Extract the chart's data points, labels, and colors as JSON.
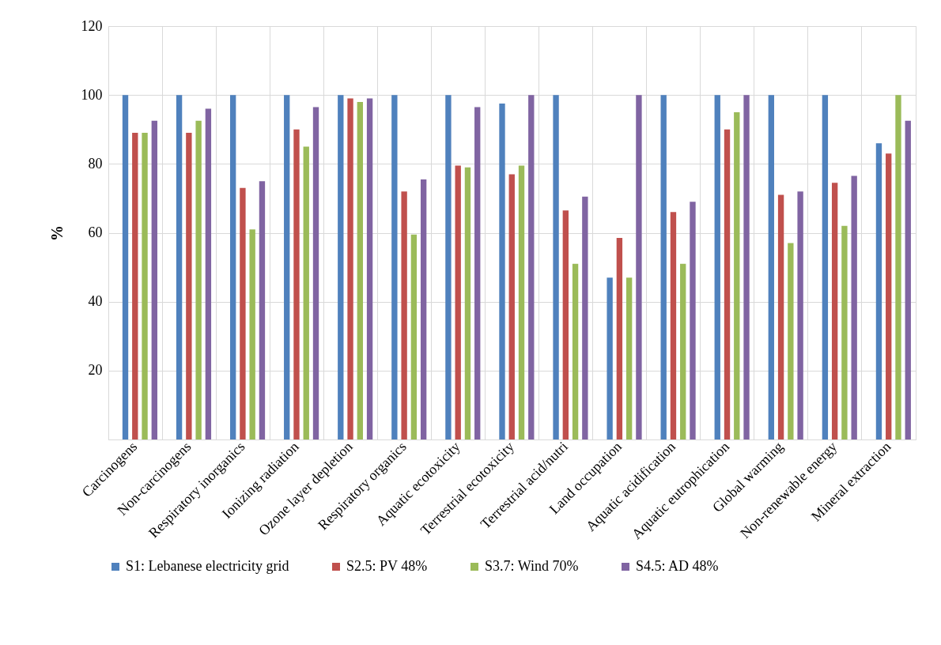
{
  "chart_data": {
    "type": "bar",
    "ylabel": "%",
    "categories": [
      "Carcinogens",
      "Non-carcinogens",
      "Respiratory inorganics",
      "Ionizing radiation",
      "Ozone layer depletion",
      "Respiratory organics",
      "Aquatic ecotoxicity",
      "Terrestrial ecotoxicity",
      "Terrestrial acid/nutri",
      "Land occupation",
      "Aquatic acidification",
      "Aquatic eutrophication",
      "Global warming",
      "Non-renewable energy",
      "Mineral extraction"
    ],
    "series": [
      {
        "name": "S1: Lebanese electricity grid",
        "color": "#4f81bd",
        "values": [
          100,
          100,
          100,
          100,
          100,
          100,
          100,
          97.5,
          100,
          47,
          100,
          100,
          100,
          100,
          86
        ]
      },
      {
        "name": "S2.5: PV 48%",
        "color": "#c0504d",
        "values": [
          89,
          89,
          73,
          90,
          99,
          72,
          79.5,
          77,
          66.5,
          58.5,
          66,
          90,
          71,
          74.5,
          83
        ]
      },
      {
        "name": "S3.7: Wind 70%",
        "color": "#9bbb59",
        "values": [
          89,
          92.5,
          61,
          85,
          98,
          59.5,
          79,
          79.5,
          51,
          47,
          51,
          95,
          57,
          62,
          100
        ]
      },
      {
        "name": "S4.5: AD 48%",
        "color": "#8064a2",
        "values": [
          92.5,
          96,
          75,
          96.5,
          99,
          75.5,
          96.5,
          100,
          70.5,
          100,
          69,
          100,
          72,
          76.5,
          92.5
        ]
      }
    ],
    "ylim": [
      0,
      120
    ],
    "yticks": [
      {
        "value": 0,
        "label": null
      },
      20,
      40,
      60,
      80,
      100,
      120
    ],
    "grid": true,
    "legend": "bottom"
  }
}
